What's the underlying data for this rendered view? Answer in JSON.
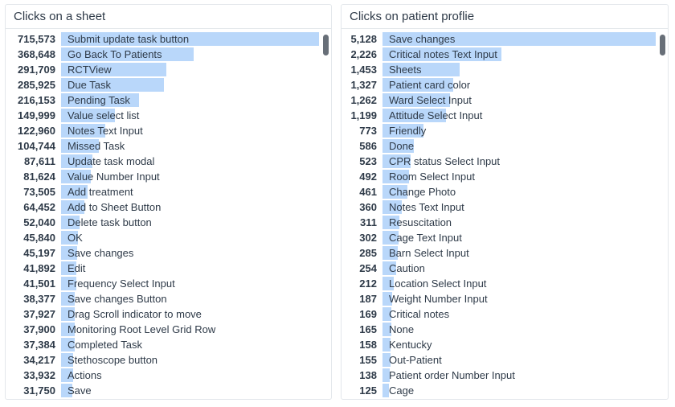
{
  "colors": {
    "bar_fill": "#b9d7fa",
    "scrollbar_thumb": "#686f78",
    "panel_border": "#e3e7eb",
    "text": "#2e3a48"
  },
  "chart_data": [
    {
      "type": "bar",
      "orientation": "horizontal",
      "title": "Clicks on a sheet",
      "xlabel": "",
      "ylabel": "",
      "legend": false,
      "grid": false,
      "axis_range": [
        0,
        715573
      ],
      "categories": [
        "Submit update task button",
        "Go Back To Patients",
        "RCTView",
        "Due Task",
        "Pending Task",
        "Value select list",
        "Notes Text Input",
        "Missed Task",
        "Update task modal",
        "Value Number Input",
        "Add treatment",
        "Add to Sheet Button",
        "Delete task button",
        "OK",
        "Save changes",
        "Edit",
        "Frequency Select Input",
        "Save changes Button",
        "Drag Scroll indicator to move",
        "Monitoring Root Level Grid Row",
        "Completed Task",
        "Stethoscope button",
        "Actions",
        "Save"
      ],
      "values": [
        715573,
        368648,
        291709,
        285925,
        216153,
        149999,
        122960,
        104744,
        87611,
        81624,
        73505,
        64452,
        52040,
        45840,
        45197,
        41892,
        41501,
        38377,
        37927,
        37900,
        37384,
        34217,
        33932,
        31750
      ],
      "value_labels": [
        "715,573",
        "368,648",
        "291,709",
        "285,925",
        "216,153",
        "149,999",
        "122,960",
        "104,744",
        "87,611",
        "81,624",
        "73,505",
        "64,452",
        "52,040",
        "45,840",
        "45,197",
        "41,892",
        "41,501",
        "38,377",
        "37,927",
        "37,900",
        "37,384",
        "34,217",
        "33,932",
        "31,750"
      ]
    },
    {
      "type": "bar",
      "orientation": "horizontal",
      "title": "Clicks on patient proflie",
      "xlabel": "",
      "ylabel": "",
      "legend": false,
      "grid": false,
      "axis_range": [
        0,
        5128
      ],
      "categories": [
        "Save changes",
        "Critical notes Text Input",
        "Sheets",
        "Patient card color",
        "Ward Select Input",
        "Attitude Select Input",
        "Friendly",
        "Done",
        "CPR status Select Input",
        "Room Select Input",
        "Change Photo",
        "Notes Text Input",
        "Resuscitation",
        "Cage Text Input",
        "Barn Select Input",
        "Caution",
        "Location Select Input",
        "Weight Number Input",
        "Critical notes",
        "None",
        "Kentucky",
        "Out-Patient",
        "Patient order Number Input",
        "Cage"
      ],
      "values": [
        5128,
        2226,
        1453,
        1327,
        1262,
        1199,
        773,
        586,
        523,
        492,
        461,
        360,
        311,
        302,
        285,
        254,
        212,
        187,
        169,
        165,
        158,
        155,
        138,
        125
      ],
      "value_labels": [
        "5,128",
        "2,226",
        "1,453",
        "1,327",
        "1,262",
        "1,199",
        "773",
        "586",
        "523",
        "492",
        "461",
        "360",
        "311",
        "302",
        "285",
        "254",
        "212",
        "187",
        "169",
        "165",
        "158",
        "155",
        "138",
        "125"
      ]
    }
  ]
}
